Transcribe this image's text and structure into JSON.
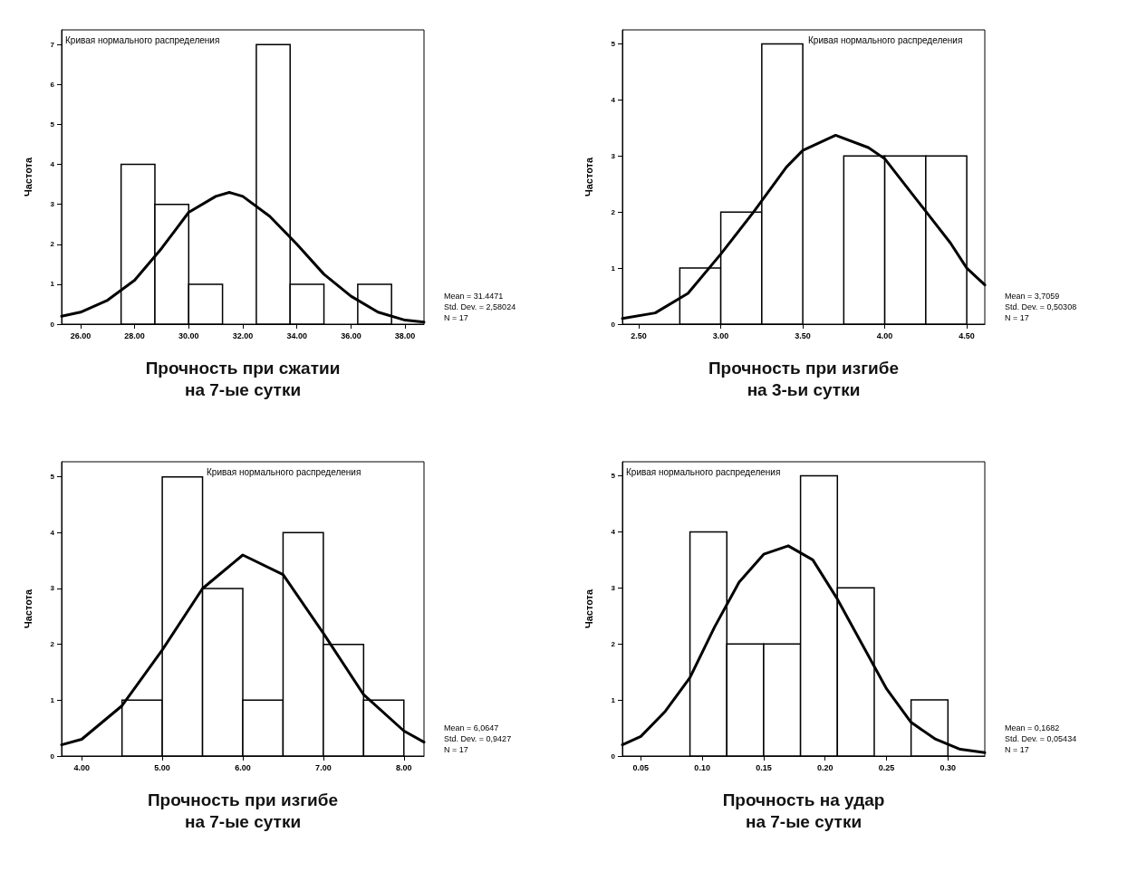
{
  "chart_data": [
    {
      "type": "histogram",
      "xlabel": "Прочность при сжатии\nна 7-ые сутки",
      "ylabel": "Частота",
      "bins": [
        27.5,
        28.75,
        30,
        31.25,
        32.5,
        33.75,
        35,
        36.25,
        37.5
      ],
      "values": [
        4,
        3,
        1,
        0,
        7,
        1,
        0,
        1
      ],
      "color": "#ffffff",
      "xlim": [
        25.3,
        38.7
      ],
      "xticks": [
        {
          "value": 26,
          "label": "26.00"
        },
        {
          "value": 28,
          "label": "28.00"
        },
        {
          "value": 30,
          "label": "30.00"
        },
        {
          "value": 32,
          "label": "32.00"
        },
        {
          "value": 34,
          "label": "34.00"
        },
        {
          "value": 36,
          "label": "36.00"
        },
        {
          "value": 38,
          "label": "38.00"
        }
      ],
      "ylim": [
        0,
        7.37
      ],
      "yticks": [
        0,
        1,
        2,
        3,
        4,
        5,
        6,
        7
      ],
      "series": [
        {
          "type": "line",
          "color": "#000000",
          "x": [
            25.3,
            26,
            27,
            28,
            29,
            30,
            31,
            31.5,
            32,
            33,
            34,
            35,
            36,
            37,
            38,
            38.7
          ],
          "values": [
            0.2,
            0.3,
            0.6,
            1.1,
            1.9,
            2.8,
            3.2,
            3.3,
            3.2,
            2.7,
            2.0,
            1.25,
            0.7,
            0.3,
            0.1,
            0.05
          ]
        }
      ],
      "annotations": [
        "Кривая нормального распределения",
        "Mean = 31.4471",
        "Std. Dev. = 2,58024",
        "N = 17"
      ]
    },
    {
      "type": "histogram",
      "xlabel": "Прочность при изгибе\nна 3-ьи сутки",
      "ylabel": "Частота",
      "bins": [
        2.75,
        3,
        3.25,
        3.5,
        3.75,
        4,
        4.25,
        4.5
      ],
      "values": [
        1,
        2,
        5,
        0,
        3,
        3,
        3
      ],
      "color": "#ffffff",
      "xlim": [
        2.4,
        4.61
      ],
      "xticks": [
        {
          "value": 2.5,
          "label": "2.50"
        },
        {
          "value": 3,
          "label": "3.00"
        },
        {
          "value": 3.5,
          "label": "3.50"
        },
        {
          "value": 4,
          "label": "4.00"
        },
        {
          "value": 4.5,
          "label": "4.50"
        }
      ],
      "ylim": [
        0,
        5.25
      ],
      "yticks": [
        0,
        1,
        2,
        3,
        4,
        5
      ],
      "series": [
        {
          "type": "line",
          "color": "#000000",
          "x": [
            2.4,
            2.6,
            2.8,
            3.0,
            3.2,
            3.4,
            3.5,
            3.7,
            3.9,
            4.0,
            4.2,
            4.4,
            4.5,
            4.61
          ],
          "values": [
            0.1,
            0.2,
            0.55,
            1.25,
            2.0,
            2.8,
            3.1,
            3.37,
            3.15,
            2.95,
            2.2,
            1.45,
            1.0,
            0.7
          ]
        }
      ],
      "annotations": [
        "Кривая нормального распределения",
        "Mean = 3,7059",
        "Std. Dev. = 0,50308",
        "N = 17"
      ]
    },
    {
      "type": "histogram",
      "xlabel": "Прочность при изгибе\nна 7-ые сутки",
      "ylabel": "Частота",
      "bins": [
        4.5,
        5,
        5.5,
        6,
        6.5,
        7,
        7.5,
        8
      ],
      "values": [
        1,
        5,
        3,
        1,
        4,
        2,
        1
      ],
      "color": "#ffffff",
      "xlim": [
        3.75,
        8.25
      ],
      "xticks": [
        {
          "value": 4,
          "label": "4.00"
        },
        {
          "value": 5,
          "label": "5.00"
        },
        {
          "value": 6,
          "label": "6.00"
        },
        {
          "value": 7,
          "label": "7.00"
        },
        {
          "value": 8,
          "label": "8.00"
        }
      ],
      "ylim": [
        0,
        5.27
      ],
      "yticks": [
        0,
        1,
        2,
        3,
        4,
        5
      ],
      "series": [
        {
          "type": "line",
          "color": "#000000",
          "x": [
            3.75,
            4,
            4.5,
            5,
            5.5,
            6,
            6.5,
            7,
            7.5,
            8,
            8.25
          ],
          "values": [
            0.2,
            0.3,
            0.9,
            1.9,
            3.0,
            3.6,
            3.25,
            2.2,
            1.1,
            0.45,
            0.25
          ]
        }
      ],
      "annotations": [
        "Кривая нормального распределения",
        "Mean = 6,0647",
        "Std. Dev. = 0,9427",
        "N = 17"
      ]
    },
    {
      "type": "histogram",
      "xlabel": "Прочность на удар\nна 7-ые сутки",
      "ylabel": "Частота",
      "bins": [
        0.09,
        0.12,
        0.15,
        0.18,
        0.21,
        0.24,
        0.27,
        0.3
      ],
      "values": [
        4,
        2,
        2,
        5,
        3,
        0,
        1
      ],
      "color": "#ffffff",
      "xlim": [
        0.035,
        0.33
      ],
      "xticks": [
        {
          "value": 0.05,
          "label": "0.05"
        },
        {
          "value": 0.1,
          "label": "0.10"
        },
        {
          "value": 0.15,
          "label": "0.15"
        },
        {
          "value": 0.2,
          "label": "0.20"
        },
        {
          "value": 0.25,
          "label": "0.25"
        },
        {
          "value": 0.3,
          "label": "0.30"
        }
      ],
      "ylim": [
        0,
        5.25
      ],
      "yticks": [
        0,
        1,
        2,
        3,
        4,
        5
      ],
      "series": [
        {
          "type": "line",
          "color": "#000000",
          "x": [
            0.035,
            0.05,
            0.07,
            0.09,
            0.11,
            0.13,
            0.15,
            0.17,
            0.19,
            0.21,
            0.23,
            0.25,
            0.27,
            0.29,
            0.31,
            0.33
          ],
          "values": [
            0.2,
            0.35,
            0.8,
            1.4,
            2.3,
            3.1,
            3.6,
            3.75,
            3.5,
            2.8,
            2.0,
            1.2,
            0.6,
            0.3,
            0.12,
            0.06
          ]
        }
      ],
      "annotations": [
        "Кривая нормального распределения",
        "Mean = 0,1682",
        "Std. Dev. = 0,05434",
        "N = 17"
      ]
    }
  ]
}
